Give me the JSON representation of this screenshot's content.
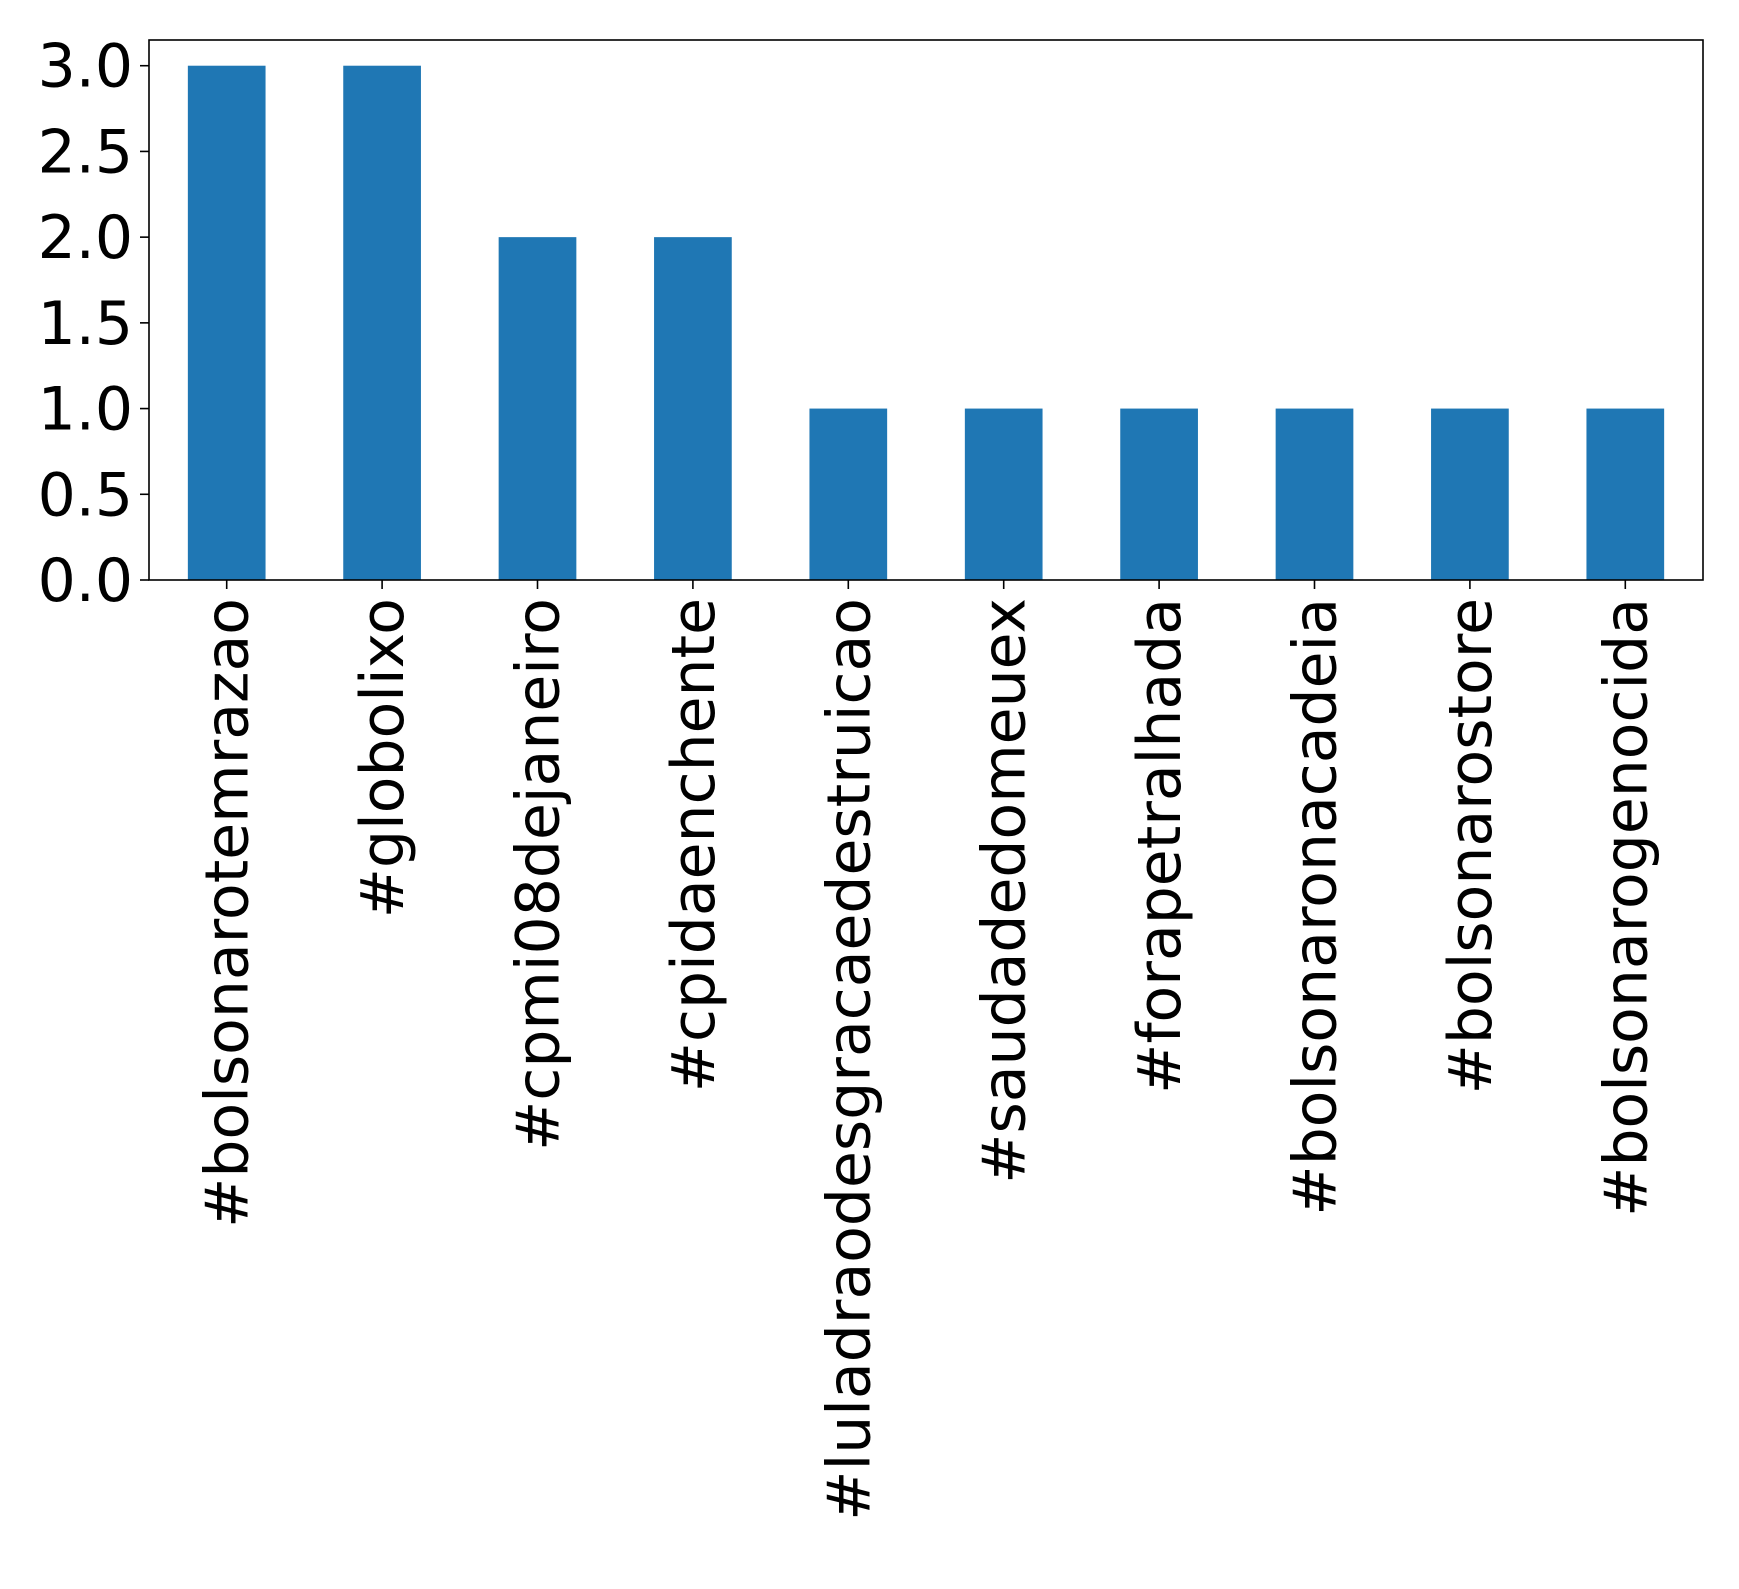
{
  "chart_data": {
    "type": "bar",
    "categories": [
      "#bolsonarotemrazao",
      "#globolixo",
      "#cpmi08dejaneiro",
      "#cpidaenchente",
      "#luladraodesgracaedestruicao",
      "#saudadedomeuex",
      "#forapetralhada",
      "#bolsonaronacadeia",
      "#bolsonarostore",
      "#bolsonarogenocida"
    ],
    "values": [
      3,
      3,
      2,
      2,
      1,
      1,
      1,
      1,
      1,
      1
    ],
    "y_ticks": [
      "0.0",
      "0.5",
      "1.0",
      "1.5",
      "2.0",
      "2.5",
      "3.0"
    ],
    "ylim": [
      0,
      3.15
    ],
    "title": "",
    "xlabel": "",
    "ylabel": "",
    "grid": false,
    "bar_color": "#1f77b4"
  }
}
